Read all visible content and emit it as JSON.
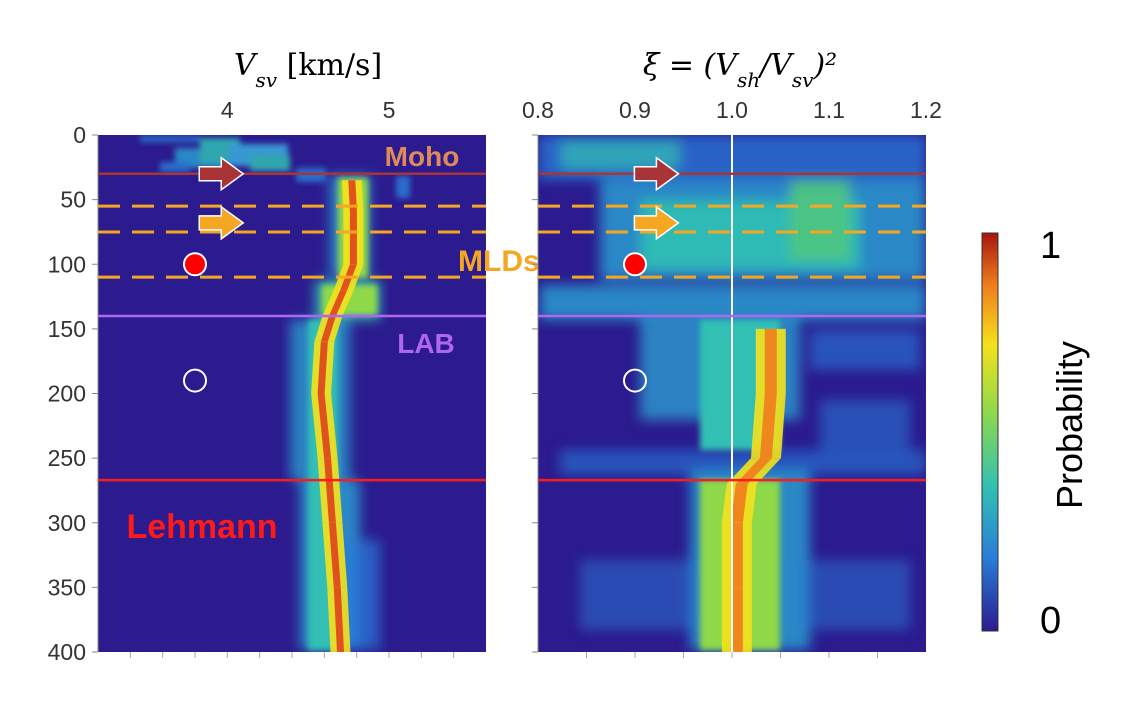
{
  "chart_data": [
    {
      "type": "heatmap",
      "title": "V_sv [km/s]",
      "xlabel": "",
      "ylabel": "",
      "xlim": [
        3.2,
        5.6
      ],
      "ylim": [
        0,
        400
      ],
      "x_ticks": [
        {
          "value": 4,
          "label": "4"
        },
        {
          "value": 5,
          "label": "5"
        }
      ],
      "y_ticks": [
        {
          "value": 0,
          "label": "0"
        },
        {
          "value": 50,
          "label": "50"
        },
        {
          "value": 100,
          "label": "100"
        },
        {
          "value": 150,
          "label": "150"
        },
        {
          "value": 200,
          "label": "200"
        },
        {
          "value": 250,
          "label": "250"
        },
        {
          "value": 300,
          "label": "300"
        },
        {
          "value": 350,
          "label": "350"
        },
        {
          "value": 400,
          "label": "400"
        }
      ],
      "ridge": {
        "depth": [
          35,
          60,
          100,
          120,
          140,
          160,
          200,
          250,
          300,
          350,
          400
        ],
        "value": [
          4.77,
          4.78,
          4.78,
          4.72,
          4.65,
          4.6,
          4.58,
          4.62,
          4.65,
          4.68,
          4.7
        ]
      },
      "lines": [
        {
          "label": "Moho",
          "depth": 30,
          "style": "solid",
          "color": "#a83438"
        },
        {
          "label": "",
          "depth": 55,
          "style": "dashed",
          "color": "#f5a623"
        },
        {
          "label": "",
          "depth": 75,
          "style": "dashed",
          "color": "#f5a623"
        },
        {
          "label": "MLDs?",
          "depth": 110,
          "style": "dashed",
          "color": "#f5a623"
        },
        {
          "label": "LAB",
          "depth": 140,
          "style": "solid",
          "color": "#b066f0"
        },
        {
          "label": "Lehmann",
          "depth": 267,
          "style": "solid",
          "color": "#ff1a1a"
        }
      ],
      "markers": [
        {
          "depth": 100,
          "value": 3.8,
          "fill": "#ff0000"
        },
        {
          "depth": 190,
          "value": 3.8,
          "fill": "none"
        }
      ],
      "arrows": [
        {
          "depth": 30,
          "value": 3.95,
          "color": "#a83438"
        },
        {
          "depth": 68,
          "value": 3.95,
          "color": "#f5a623"
        }
      ]
    },
    {
      "type": "heatmap",
      "title": "ξ = (V_sh/V_sv)²",
      "xlabel": "",
      "ylabel": "",
      "xlim": [
        0.8,
        1.2
      ],
      "ylim": [
        0,
        400
      ],
      "x_ticks": [
        {
          "value": 0.8,
          "label": "0.8"
        },
        {
          "value": 0.9,
          "label": "0.9"
        },
        {
          "value": 1.0,
          "label": "1.0"
        },
        {
          "value": 1.1,
          "label": "1.1"
        },
        {
          "value": 1.2,
          "label": "1.2"
        }
      ],
      "reference_line": 1.0,
      "ridge": {
        "depth": [
          150,
          200,
          250,
          270,
          300,
          350,
          400
        ],
        "value": [
          1.04,
          1.04,
          1.035,
          1.01,
          1.005,
          1.005,
          1.005
        ]
      },
      "lines": [
        {
          "label": "",
          "depth": 30,
          "style": "solid",
          "color": "#a83438"
        },
        {
          "label": "",
          "depth": 55,
          "style": "dashed",
          "color": "#f5a623"
        },
        {
          "label": "",
          "depth": 75,
          "style": "dashed",
          "color": "#f5a623"
        },
        {
          "label": "",
          "depth": 110,
          "style": "dashed",
          "color": "#f5a623"
        },
        {
          "label": "",
          "depth": 140,
          "style": "solid",
          "color": "#b066f0"
        },
        {
          "label": "",
          "depth": 267,
          "style": "solid",
          "color": "#ff1a1a"
        }
      ],
      "markers": [
        {
          "depth": 100,
          "value": 0.9,
          "fill": "#ff0000"
        },
        {
          "depth": 190,
          "value": 0.9,
          "fill": "none"
        }
      ],
      "arrows": [
        {
          "depth": 30,
          "value": 0.92,
          "color": "#a83438"
        },
        {
          "depth": 68,
          "value": 0.92,
          "color": "#f5a623"
        }
      ]
    }
  ],
  "colorbar": {
    "label": "Probability",
    "min_label": "0",
    "max_label": "1",
    "colors": [
      "#2b1b8e",
      "#2a7bd8",
      "#31c0b4",
      "#8fd94a",
      "#f5e11c",
      "#f07d1c",
      "#a8140f"
    ]
  }
}
